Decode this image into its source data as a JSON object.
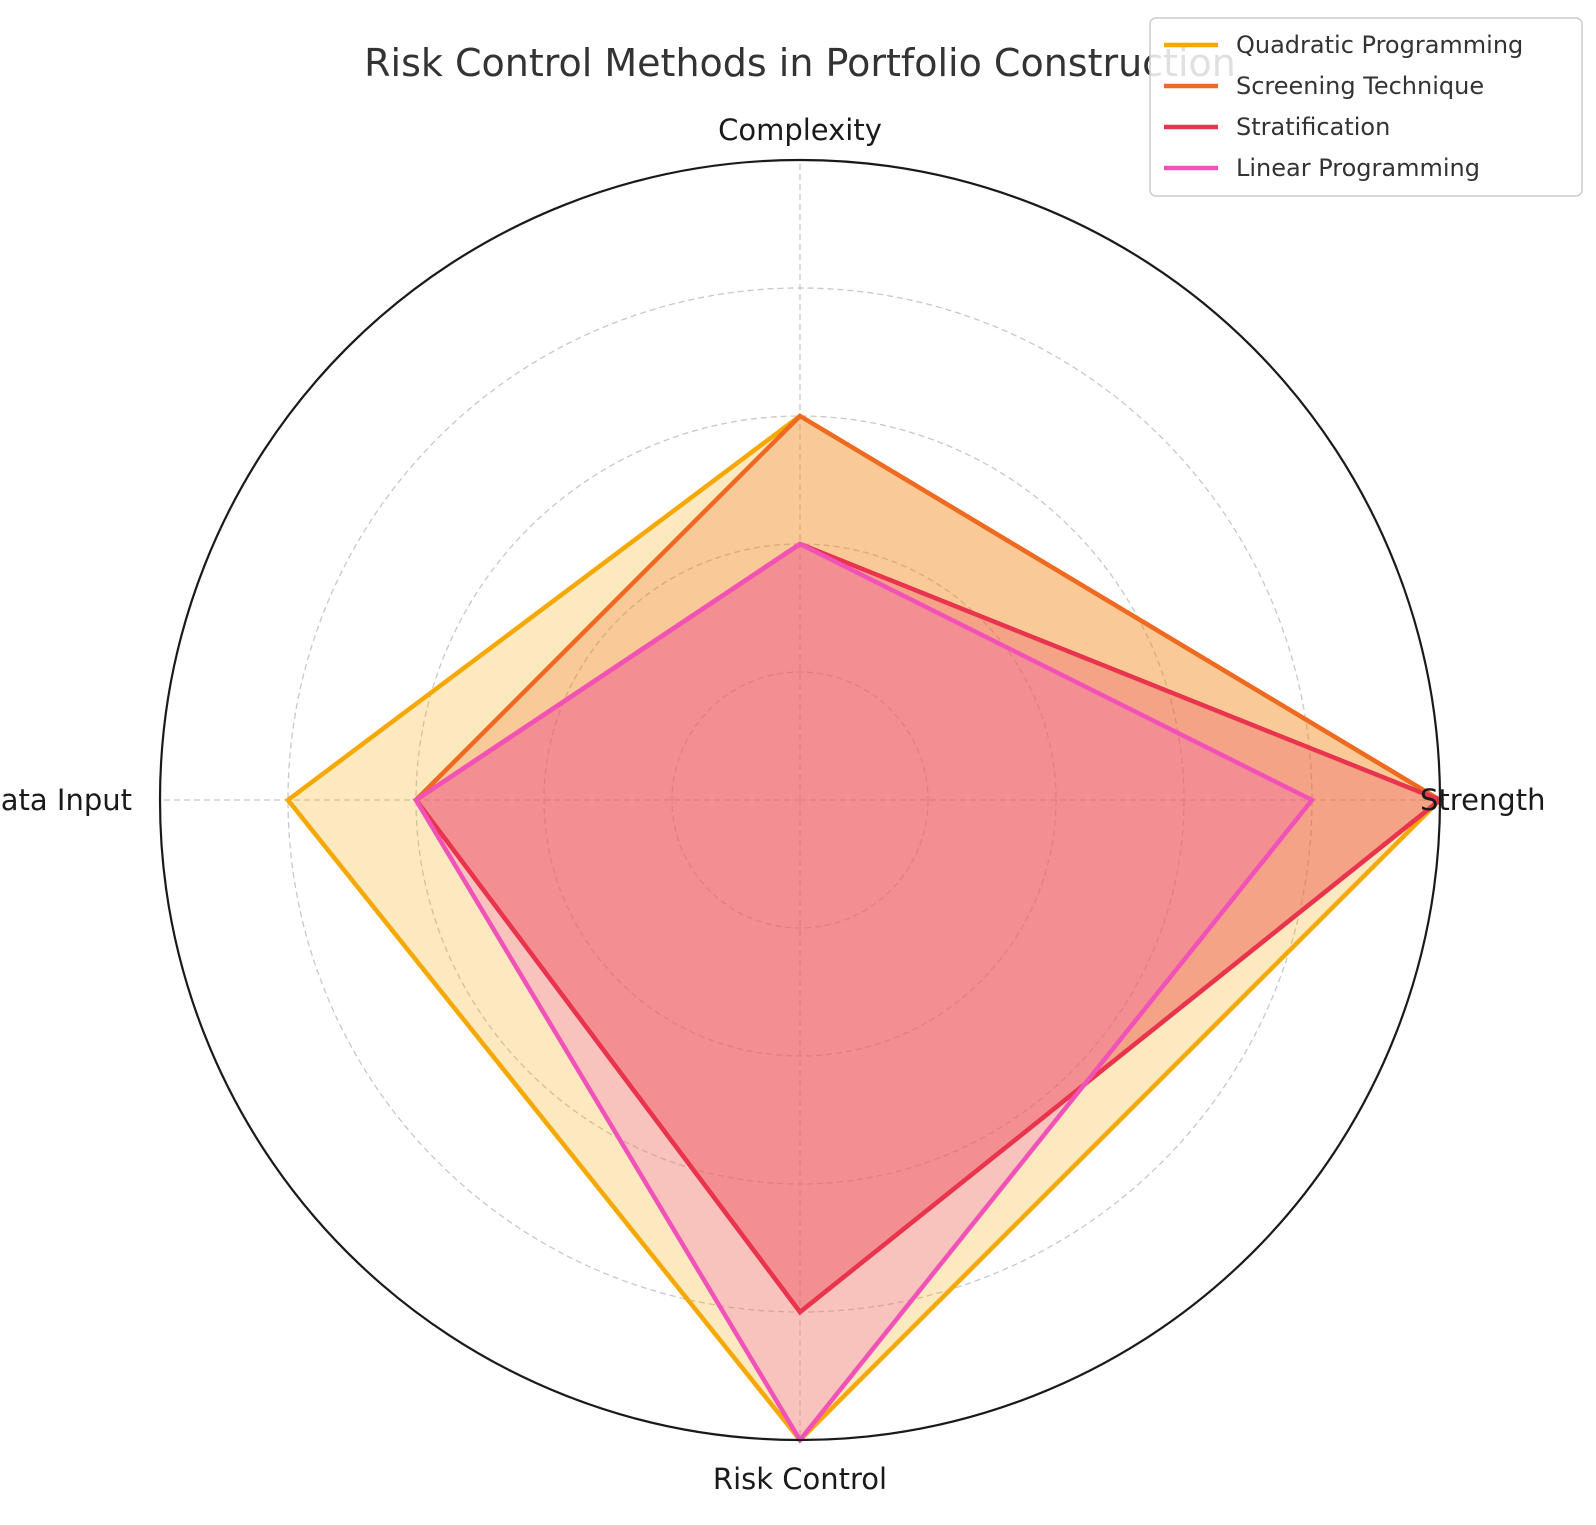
{
  "chart_data": {
    "type": "radar",
    "title": "Risk Control Methods in Portfolio Construction",
    "axes": [
      "Complexity",
      "Strength",
      "Risk Control",
      "Data Input"
    ],
    "rlim": [
      0,
      5
    ],
    "grid": true,
    "legend_position": "top-right",
    "series": [
      {
        "name": "Quadratic Programming",
        "color": "#f5a800",
        "values": [
          3,
          5,
          5,
          4
        ]
      },
      {
        "name": "Screening Technique",
        "color": "#ee6a22",
        "values": [
          3,
          5,
          4,
          3
        ]
      },
      {
        "name": "Stratification",
        "color": "#e8344e",
        "values": [
          2,
          5,
          4,
          3
        ]
      },
      {
        "name": "Linear Programming",
        "color": "#f052b8",
        "values": [
          2,
          4,
          5,
          3
        ]
      }
    ]
  }
}
